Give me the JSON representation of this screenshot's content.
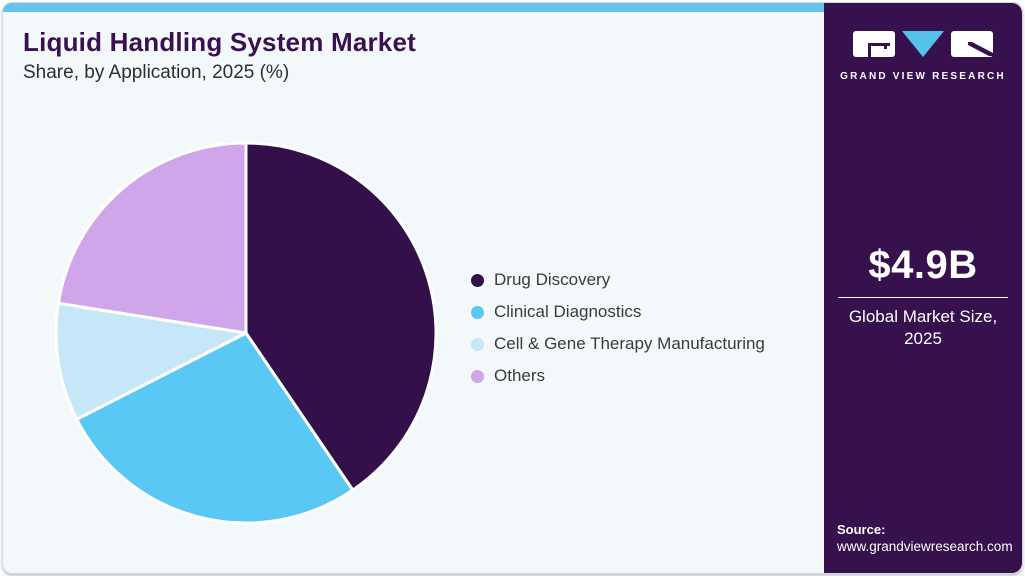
{
  "header": {
    "title": "Liquid Handling System Market",
    "subtitle": "Share, by Application, 2025 (%)"
  },
  "chart_data": {
    "type": "pie",
    "title": "Liquid Handling System Market Share, by Application, 2025 (%)",
    "labels": [
      "Drug Discovery",
      "Clinical Diagnostics",
      "Cell & Gene Therapy Manufacturing",
      "Others"
    ],
    "values": [
      40.5,
      27.0,
      10.0,
      22.5
    ],
    "unit": "%",
    "colors": [
      "#33104a",
      "#5ac8f5",
      "#c5e7f8",
      "#d0a6ea"
    ],
    "start_angle_deg": 0,
    "direction": "clockwise",
    "slice_border_color": "#ffffff",
    "legend_position": "right"
  },
  "sidebar": {
    "logo": {
      "brand": "GRAND VIEW RESEARCH",
      "triangle_color": "#56c2ec",
      "box_color": "#ffffff"
    },
    "stat": {
      "value": "$4.9B",
      "label_line1": "Global Market Size,",
      "label_line2": "2025"
    },
    "source": {
      "label": "Source:",
      "url": "www.grandviewresearch.com"
    }
  },
  "theme": {
    "topbar": "#62c3ee",
    "card_bg": "#f3f8fb",
    "sidebar_bg": "#36114d",
    "title_color": "#3a1150"
  }
}
